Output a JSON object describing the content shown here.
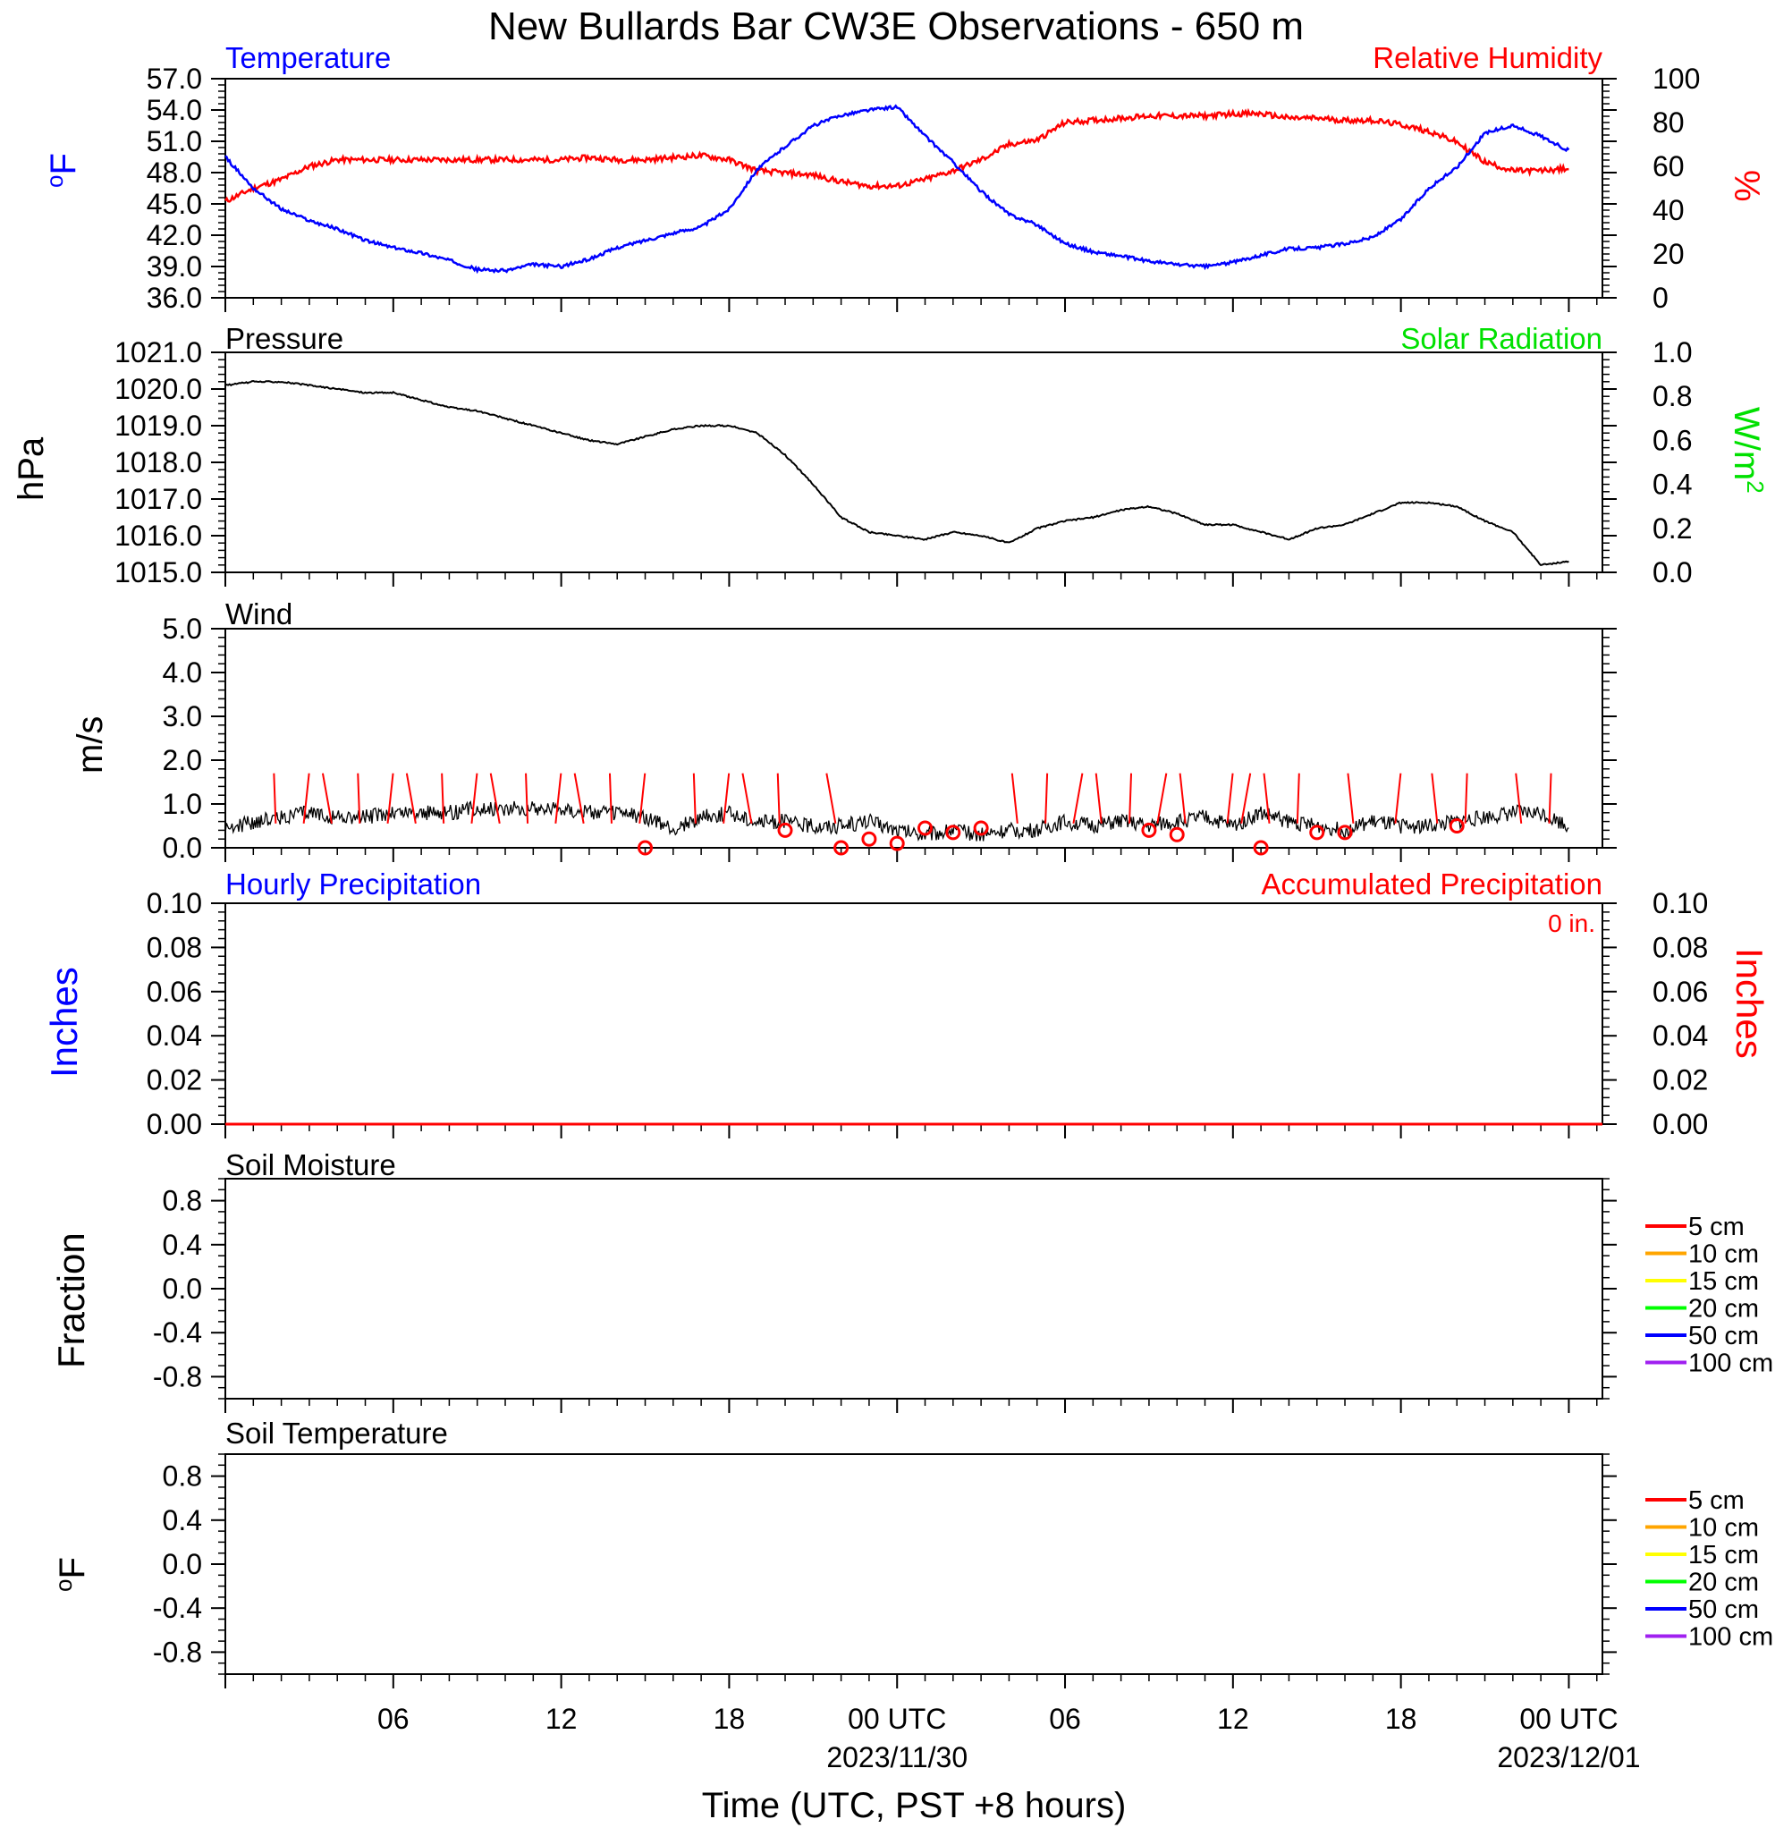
{
  "title": "New Bullards Bar CW3E Observations - 650 m",
  "xlabel": "Time (UTC, PST +8 hours)",
  "x_ticks": [
    {
      "label": "06",
      "hour": 6
    },
    {
      "label": "12",
      "hour": 12
    },
    {
      "label": "18",
      "hour": 18
    },
    {
      "label": "00 UTC",
      "date": "2023/11/30",
      "hour": 24
    },
    {
      "label": "06",
      "hour": 30
    },
    {
      "label": "12",
      "hour": 36
    },
    {
      "label": "18",
      "hour": 42
    },
    {
      "label": "00 UTC",
      "date": "2023/12/01",
      "hour": 48
    }
  ],
  "colors": {
    "temperature": "#0000ff",
    "humidity": "#ff0000",
    "pressure": "#000000",
    "solar": "#00e000",
    "wind": "#000000",
    "wind_barb": "#ff0000",
    "precip_hourly": "#0000ff",
    "precip_accum": "#ff0000",
    "soil_5cm": "#ff0000",
    "soil_10cm": "#ffa500",
    "soil_15cm": "#ffff00",
    "soil_20cm": "#00ff00",
    "soil_50cm": "#0000ff",
    "soil_100cm": "#a020f0"
  },
  "panels": {
    "temp_rh": {
      "left_title": "Temperature",
      "right_title": "Relative Humidity",
      "left_unit": "oF",
      "right_unit": "%",
      "left_ticks": [
        "57.0",
        "54.0",
        "51.0",
        "48.0",
        "45.0",
        "42.0",
        "39.0",
        "36.0"
      ],
      "right_ticks": [
        "100",
        "80",
        "60",
        "40",
        "20",
        "0"
      ]
    },
    "pressure": {
      "left_title": "Pressure",
      "right_title": "Solar Radiation",
      "left_unit": "hPa",
      "right_unit": "W/m2",
      "left_ticks": [
        "1021.0",
        "1020.0",
        "1019.0",
        "1018.0",
        "1017.0",
        "1016.0",
        "1015.0"
      ],
      "right_ticks": [
        "1.0",
        "0.8",
        "0.6",
        "0.4",
        "0.2",
        "0.0"
      ]
    },
    "wind": {
      "left_title": "Wind",
      "left_unit": "m/s",
      "left_ticks": [
        "5.0",
        "4.0",
        "3.0",
        "2.0",
        "1.0",
        "0.0"
      ]
    },
    "precip": {
      "left_title": "Hourly Precipitation",
      "right_title": "Accumulated Precipitation",
      "accum_label": "0 in.",
      "left_unit": "Inches",
      "right_unit": "Inches",
      "left_ticks": [
        "0.10",
        "0.08",
        "0.06",
        "0.04",
        "0.02",
        "0.00"
      ],
      "right_ticks": [
        "0.10",
        "0.08",
        "0.06",
        "0.04",
        "0.02",
        "0.00"
      ]
    },
    "soil_moisture": {
      "left_title": "Soil Moisture",
      "left_unit": "Fraction",
      "left_ticks": [
        "0.8",
        "0.4",
        "0.0",
        "-0.4",
        "-0.8"
      ],
      "legend": [
        "5 cm",
        "10 cm",
        "15 cm",
        "20 cm",
        "50 cm",
        "100 cm"
      ]
    },
    "soil_temp": {
      "left_title": "Soil Temperature",
      "left_unit": "oF",
      "left_ticks": [
        "0.8",
        "0.4",
        "0.0",
        "-0.4",
        "-0.8"
      ],
      "legend": [
        "5 cm",
        "10 cm",
        "15 cm",
        "20 cm",
        "50 cm",
        "100 cm"
      ]
    }
  },
  "chart_data": [
    {
      "type": "line",
      "title": "Temperature",
      "ylabel": "oF",
      "ylim": [
        36,
        57
      ],
      "x_unit": "hours after 2023-11-29 00 UTC",
      "series": [
        {
          "name": "Temperature",
          "x": [
            0,
            1,
            2,
            3,
            4,
            5,
            6,
            7,
            8,
            9,
            10,
            11,
            12,
            13,
            14,
            15,
            16,
            17,
            18,
            19,
            20,
            21,
            22,
            23,
            24,
            25,
            26,
            27,
            28,
            29,
            30,
            31,
            32,
            33,
            34,
            35,
            36,
            37,
            38,
            39,
            40,
            41,
            42,
            43,
            44,
            45,
            46,
            47,
            48
          ],
          "values": [
            49.5,
            46.5,
            44.5,
            43.4,
            42.6,
            41.5,
            40.8,
            40.3,
            39.6,
            38.7,
            38.6,
            39.2,
            39.0,
            39.7,
            40.8,
            41.5,
            42.2,
            42.8,
            44.5,
            48.3,
            50.5,
            52.5,
            53.5,
            54.0,
            54.3,
            51.5,
            49.0,
            46.2,
            44.0,
            43.0,
            41.2,
            40.4,
            40.0,
            39.5,
            39.2,
            39.0,
            39.4,
            40.1,
            40.7,
            40.8,
            41.2,
            41.8,
            43.5,
            46.5,
            48.5,
            51.8,
            52.5,
            51.5,
            50.1
          ]
        }
      ]
    },
    {
      "type": "line",
      "title": "Relative Humidity",
      "ylabel": "%",
      "ylim": [
        0,
        100
      ],
      "x_unit": "hours after 2023-11-29 00 UTC",
      "series": [
        {
          "name": "Relative Humidity",
          "x": [
            0,
            1,
            2,
            3,
            4,
            5,
            6,
            7,
            8,
            9,
            10,
            11,
            12,
            13,
            14,
            15,
            16,
            17,
            18,
            19,
            20,
            21,
            22,
            23,
            24,
            25,
            26,
            27,
            28,
            29,
            30,
            31,
            32,
            33,
            34,
            35,
            36,
            37,
            38,
            39,
            40,
            41,
            42,
            43,
            44,
            45,
            46,
            47,
            48
          ],
          "values": [
            44,
            50,
            54,
            60,
            63,
            63,
            63,
            63,
            63,
            63,
            63,
            63,
            63,
            64,
            63,
            63,
            64,
            65,
            63,
            58,
            57,
            56,
            53,
            51,
            51,
            54,
            58,
            63,
            70,
            72,
            80,
            81,
            82,
            83,
            83,
            83,
            84,
            84,
            82,
            82,
            81,
            81,
            79,
            76,
            71,
            62,
            58,
            58,
            59
          ]
        }
      ]
    },
    {
      "type": "line",
      "title": "Pressure",
      "ylabel": "hPa",
      "ylim": [
        1015,
        1021
      ],
      "x_unit": "hours after 2023-11-29 00 UTC",
      "series": [
        {
          "name": "Pressure",
          "x": [
            0,
            1,
            2,
            3,
            4,
            5,
            6,
            7,
            8,
            9,
            10,
            11,
            12,
            13,
            14,
            15,
            16,
            17,
            18,
            19,
            20,
            21,
            22,
            23,
            24,
            25,
            26,
            27,
            28,
            29,
            30,
            31,
            32,
            33,
            34,
            35,
            36,
            37,
            38,
            39,
            40,
            41,
            42,
            43,
            44,
            45,
            46,
            47,
            48
          ],
          "values": [
            1020.1,
            1020.2,
            1020.2,
            1020.1,
            1020.0,
            1019.9,
            1019.9,
            1019.7,
            1019.5,
            1019.4,
            1019.2,
            1019.0,
            1018.8,
            1018.6,
            1018.5,
            1018.7,
            1018.9,
            1019.0,
            1019.0,
            1018.8,
            1018.2,
            1017.4,
            1016.5,
            1016.1,
            1016.0,
            1015.9,
            1016.1,
            1016.0,
            1015.8,
            1016.2,
            1016.4,
            1016.5,
            1016.7,
            1016.8,
            1016.6,
            1016.3,
            1016.3,
            1016.1,
            1015.9,
            1016.2,
            1016.3,
            1016.6,
            1016.9,
            1016.9,
            1016.8,
            1016.4,
            1016.1,
            1015.2,
            1015.3
          ]
        }
      ]
    },
    {
      "type": "line",
      "title": "Wind",
      "ylabel": "m/s",
      "ylim": [
        0,
        5
      ],
      "x_unit": "hours after 2023-11-29 00 UTC",
      "series": [
        {
          "name": "Wind",
          "x": [
            0,
            1,
            2,
            3,
            4,
            5,
            6,
            7,
            8,
            9,
            10,
            11,
            12,
            13,
            14,
            15,
            16,
            17,
            18,
            19,
            20,
            21,
            22,
            23,
            24,
            25,
            26,
            27,
            28,
            29,
            30,
            31,
            32,
            33,
            34,
            35,
            36,
            37,
            38,
            39,
            40,
            41,
            42,
            43,
            44,
            45,
            46,
            47,
            48
          ],
          "values": [
            0.4,
            0.6,
            0.7,
            0.8,
            0.7,
            0.7,
            0.8,
            0.8,
            0.8,
            0.9,
            0.9,
            0.9,
            0.9,
            0.8,
            0.8,
            0.7,
            0.4,
            0.7,
            0.8,
            0.6,
            0.6,
            0.5,
            0.5,
            0.6,
            0.4,
            0.3,
            0.4,
            0.3,
            0.4,
            0.4,
            0.6,
            0.5,
            0.6,
            0.5,
            0.6,
            0.7,
            0.5,
            0.8,
            0.6,
            0.5,
            0.4,
            0.6,
            0.5,
            0.5,
            0.6,
            0.7,
            0.8,
            0.8,
            0.5
          ]
        }
      ]
    },
    {
      "type": "line",
      "title": "Hourly Precipitation",
      "ylabel": "Inches",
      "ylim": [
        0,
        0.1
      ],
      "series": [
        {
          "name": "Accumulated Precipitation",
          "x": [
            0,
            48
          ],
          "values": [
            0,
            0
          ]
        }
      ]
    }
  ]
}
